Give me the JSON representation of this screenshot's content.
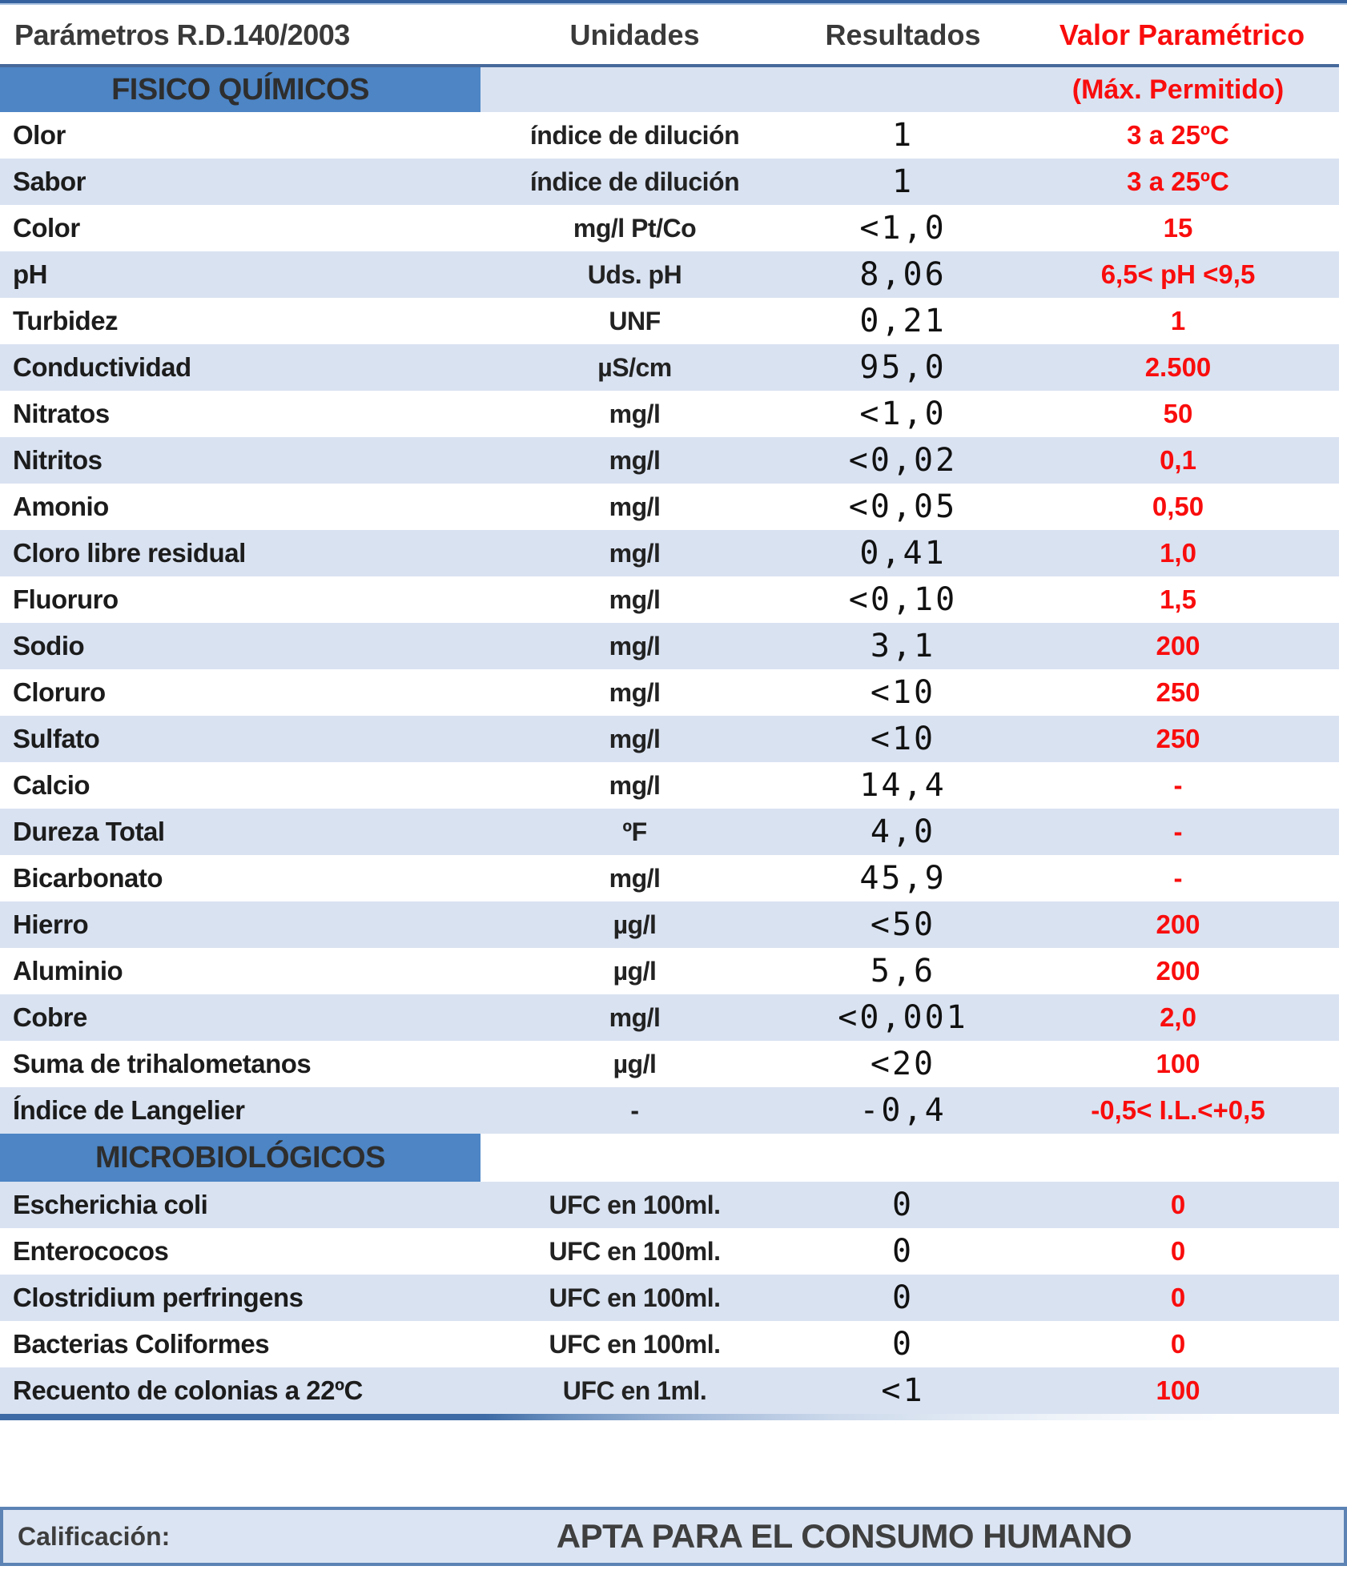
{
  "header": {
    "parameters": "Parámetros R.D.140/2003",
    "units": "Unidades",
    "results": "Resultados",
    "parametric_value": "Valor Paramétrico"
  },
  "sections": [
    {
      "title": "FISICO QUÍMICOS",
      "note": "(Máx. Permitido)",
      "rows": [
        {
          "param": "Olor",
          "unit": "índice de dilución",
          "result": "1",
          "value": "3 a 25ºC"
        },
        {
          "param": "Sabor",
          "unit": "índice de dilución",
          "result": "1",
          "value": "3 a 25ºC"
        },
        {
          "param": "Color",
          "unit": "mg/l Pt/Co",
          "result": "<1,0",
          "value": "15"
        },
        {
          "param": "pH",
          "unit": "Uds. pH",
          "result": "8,06",
          "value": "6,5< pH <9,5"
        },
        {
          "param": "Turbidez",
          "unit": "UNF",
          "result": "0,21",
          "value": "1"
        },
        {
          "param": "Conductividad",
          "unit": "µS/cm",
          "result": "95,0",
          "value": "2.500"
        },
        {
          "param": "Nitratos",
          "unit": "mg/l",
          "result": "<1,0",
          "value": "50"
        },
        {
          "param": "Nitritos",
          "unit": "mg/l",
          "result": "<0,02",
          "value": "0,1"
        },
        {
          "param": "Amonio",
          "unit": "mg/l",
          "result": "<0,05",
          "value": "0,50"
        },
        {
          "param": "Cloro libre residual",
          "unit": "mg/l",
          "result": "0,41",
          "value": "1,0"
        },
        {
          "param": "Fluoruro",
          "unit": "mg/l",
          "result": "<0,10",
          "value": "1,5"
        },
        {
          "param": "Sodio",
          "unit": "mg/l",
          "result": "3,1",
          "value": "200"
        },
        {
          "param": "Cloruro",
          "unit": "mg/l",
          "result": "<10",
          "value": "250"
        },
        {
          "param": "Sulfato",
          "unit": "mg/l",
          "result": "<10",
          "value": "250"
        },
        {
          "param": "Calcio",
          "unit": "mg/l",
          "result": "14,4",
          "value": "-"
        },
        {
          "param": "Dureza Total",
          "unit": "ºF",
          "result": "4,0",
          "value": "-"
        },
        {
          "param": "Bicarbonato",
          "unit": "mg/l",
          "result": "45,9",
          "value": "-"
        },
        {
          "param": "Hierro",
          "unit": "µg/l",
          "result": "<50",
          "value": "200"
        },
        {
          "param": "Aluminio",
          "unit": "µg/l",
          "result": "5,6",
          "value": "200"
        },
        {
          "param": "Cobre",
          "unit": "mg/l",
          "result": "<0,001",
          "value": "2,0"
        },
        {
          "param": "Suma de trihalometanos",
          "unit": "µg/l",
          "result": "<20",
          "value": "100"
        },
        {
          "param": "Índice de Langelier",
          "unit": "-",
          "result": "-0,4",
          "value": "-0,5< I.L.<+0,5"
        }
      ]
    },
    {
      "title": "MICROBIOLÓGICOS",
      "note": "",
      "rows": [
        {
          "param": "Escherichia coli",
          "unit": "UFC en 100ml.",
          "result": "0",
          "value": "0"
        },
        {
          "param": "Enterococos",
          "unit": "UFC en 100ml.",
          "result": "0",
          "value": "0"
        },
        {
          "param": "Clostridium perfringens",
          "unit": "UFC en 100ml.",
          "result": "0",
          "value": "0"
        },
        {
          "param": "Bacterias Coliformes",
          "unit": "UFC en 100ml.",
          "result": "0",
          "value": "0"
        },
        {
          "param": "Recuento de colonias a 22ºC",
          "unit": "UFC en 1ml.",
          "result": "<1",
          "value": "100"
        }
      ]
    }
  ],
  "footer": {
    "label": "Calificación:",
    "result": "APTA PARA EL CONSUMO HUMANO"
  },
  "colors": {
    "accent_blue": "#4d85c5",
    "band_blue": "#d9e2f1",
    "border_blue": "#46699b",
    "value_red": "#f90d0d",
    "text_dark": "#1c1c1c"
  }
}
